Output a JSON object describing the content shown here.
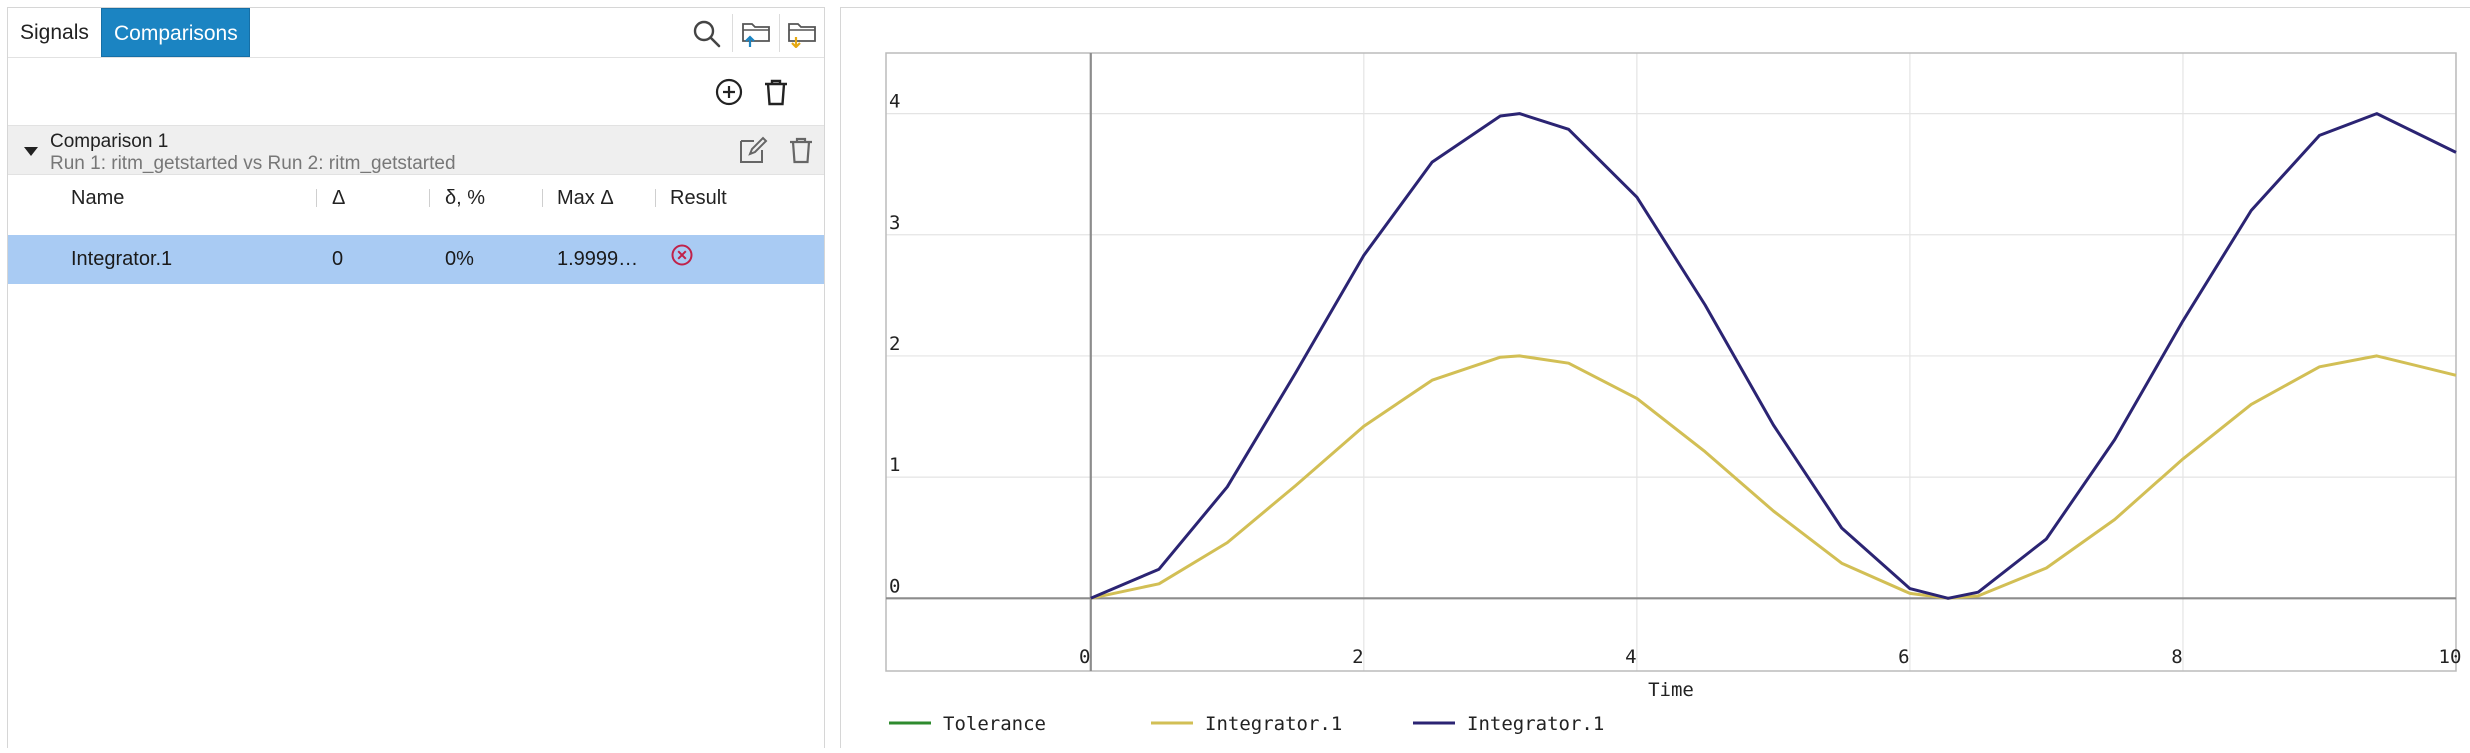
{
  "tabs": [
    {
      "label": "Signals",
      "active": false
    },
    {
      "label": "Comparisons",
      "active": true
    }
  ],
  "toolbar": {
    "icons": [
      "search-icon",
      "folder-upload-icon",
      "folder-download-icon"
    ]
  },
  "actions": {
    "icons": [
      "add-circle-icon",
      "trash-icon"
    ]
  },
  "comparison": {
    "title": "Comparison 1",
    "subtitle": "Run 1: ritm_getstarted vs Run 2: ritm_getstarted",
    "icons": [
      "edit-icon",
      "trash-icon"
    ]
  },
  "table": {
    "columns": [
      "Name",
      "Δ",
      "δ, %",
      "Max Δ",
      "Result"
    ],
    "rows": [
      {
        "name": "Integrator.1",
        "delta": "0",
        "delta_pct": "0%",
        "max_delta": "1.9999…",
        "result_icon": "error-circle-icon"
      }
    ],
    "selected_row_color": "#a9cbf3"
  },
  "colors": {
    "accent": "#1b84c2",
    "error": "#c0224a",
    "tolerance": "#2e8b2e",
    "series_a": "#d2bf55",
    "series_b": "#2b2473"
  },
  "chart_data": {
    "type": "line",
    "xlabel": "Time",
    "ylabel": "",
    "xlim": [
      -1.5,
      10
    ],
    "ylim": [
      -0.6,
      4.5
    ],
    "x_ticks": [
      0,
      2,
      4,
      6,
      8,
      10
    ],
    "y_ticks": [
      0,
      1,
      2,
      3,
      4
    ],
    "grid": true,
    "legend": "bottom-left",
    "series": [
      {
        "name": "Tolerance",
        "color": "#2e8b2e",
        "x": [],
        "y": []
      },
      {
        "name": "Integrator.1",
        "color": "#d2bf55",
        "x": [
          0,
          0.5,
          1,
          1.5,
          2,
          2.5,
          3,
          3.14,
          3.5,
          4,
          4.5,
          5,
          5.5,
          6,
          6.28,
          6.5,
          7,
          7.5,
          8,
          8.5,
          9,
          9.42,
          10
        ],
        "y": [
          0,
          0.12,
          0.46,
          0.93,
          1.42,
          1.8,
          1.99,
          2.0,
          1.94,
          1.65,
          1.21,
          0.72,
          0.29,
          0.04,
          0,
          0.02,
          0.25,
          0.65,
          1.15,
          1.6,
          1.91,
          2.0,
          1.84
        ]
      },
      {
        "name": "Integrator.1",
        "color": "#2b2473",
        "x": [
          0,
          0.5,
          1,
          1.5,
          2,
          2.5,
          3,
          3.14,
          3.5,
          4,
          4.5,
          5,
          5.5,
          6,
          6.28,
          6.5,
          7,
          7.5,
          8,
          8.5,
          9,
          9.42,
          10
        ],
        "y": [
          0,
          0.24,
          0.92,
          1.86,
          2.83,
          3.6,
          3.98,
          4.0,
          3.87,
          3.31,
          2.42,
          1.43,
          0.58,
          0.08,
          0,
          0.05,
          0.49,
          1.31,
          2.29,
          3.2,
          3.82,
          4.0,
          3.68
        ]
      }
    ]
  }
}
